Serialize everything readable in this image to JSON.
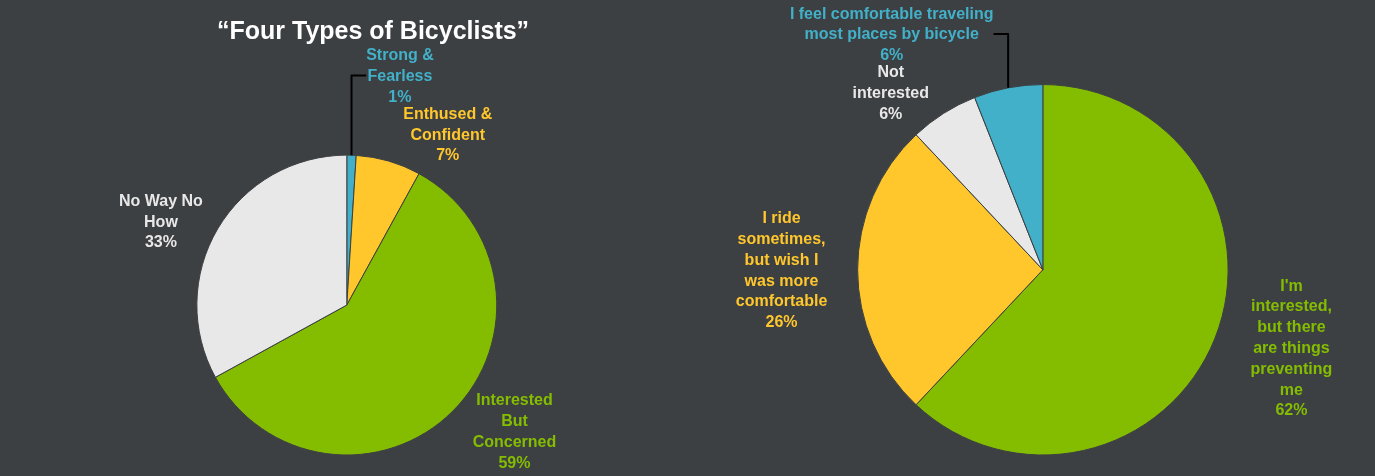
{
  "chart_data": [
    {
      "type": "pie",
      "title": "“Four Types of Bicyclists”",
      "categories": [
        "Strong &\nFearless",
        "Enthused &\nConfident",
        "Interested\nBut\nConcerned",
        "No Way No\nHow"
      ],
      "values": [
        1,
        7,
        59,
        33
      ],
      "value_labels": [
        "1%",
        "7%",
        "59%",
        "33%"
      ],
      "colors": [
        "#41b0c8",
        "#ffc72c",
        "#84bd00",
        "#e8e8e8"
      ]
    },
    {
      "type": "pie",
      "categories": [
        "I'm\ninterested,\nbut there\nare things\npreventing\nme",
        "I ride\nsometimes,\nbut wish I\nwas more\ncomfortable",
        "Not\ninterested",
        "I feel comfortable traveling\nmost places by bicycle"
      ],
      "values": [
        62,
        26,
        6,
        6
      ],
      "value_labels": [
        "62%",
        "26%",
        "6%",
        "6%"
      ],
      "colors": [
        "#84bd00",
        "#ffc72c",
        "#e8e8e8",
        "#41b0c8"
      ]
    }
  ]
}
